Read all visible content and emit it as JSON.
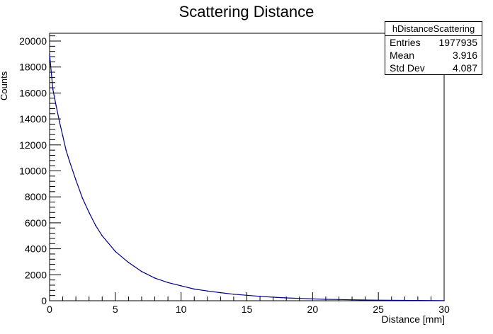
{
  "title": "Scattering Distance",
  "xlabel": "Distance [mm]",
  "ylabel": "Counts",
  "stats": {
    "name": "hDistanceScattering",
    "rows": [
      {
        "label": "Entries",
        "value": "1977935"
      },
      {
        "label": "Mean",
        "value": "3.916"
      },
      {
        "label": "Std Dev",
        "value": "4.087"
      }
    ]
  },
  "colors": {
    "series": "#00007f",
    "axis": "#000000",
    "frame": "#000000"
  },
  "chart_data": {
    "type": "line",
    "title": "Scattering Distance",
    "xlabel": "Distance [mm]",
    "ylabel": "Counts",
    "xlim": [
      0,
      30
    ],
    "ylim": [
      0,
      20600
    ],
    "xticks": [
      0,
      5,
      10,
      15,
      20,
      25,
      30
    ],
    "yticks": [
      0,
      2000,
      4000,
      6000,
      8000,
      10000,
      12000,
      14000,
      16000,
      18000,
      20000
    ],
    "grid": false,
    "legend": "none",
    "series": [
      {
        "x": [
          0,
          0.25,
          0.5,
          0.75,
          1,
          1.25,
          1.5,
          2,
          2.5,
          3,
          3.5,
          4,
          4.5,
          5,
          6,
          7,
          8,
          9,
          10,
          11,
          12,
          13,
          14,
          15,
          16,
          17,
          18,
          19,
          20,
          21,
          22,
          23,
          24,
          25,
          26,
          27,
          28,
          29,
          30
        ],
        "values": [
          19000,
          16300,
          15000,
          13800,
          12700,
          11600,
          10800,
          9300,
          7900,
          6800,
          5800,
          5000,
          4400,
          3800,
          2950,
          2250,
          1750,
          1400,
          1150,
          900,
          750,
          620,
          500,
          420,
          340,
          270,
          220,
          180,
          140,
          110,
          90,
          70,
          55,
          45,
          35,
          28,
          20,
          15,
          12
        ]
      }
    ]
  }
}
